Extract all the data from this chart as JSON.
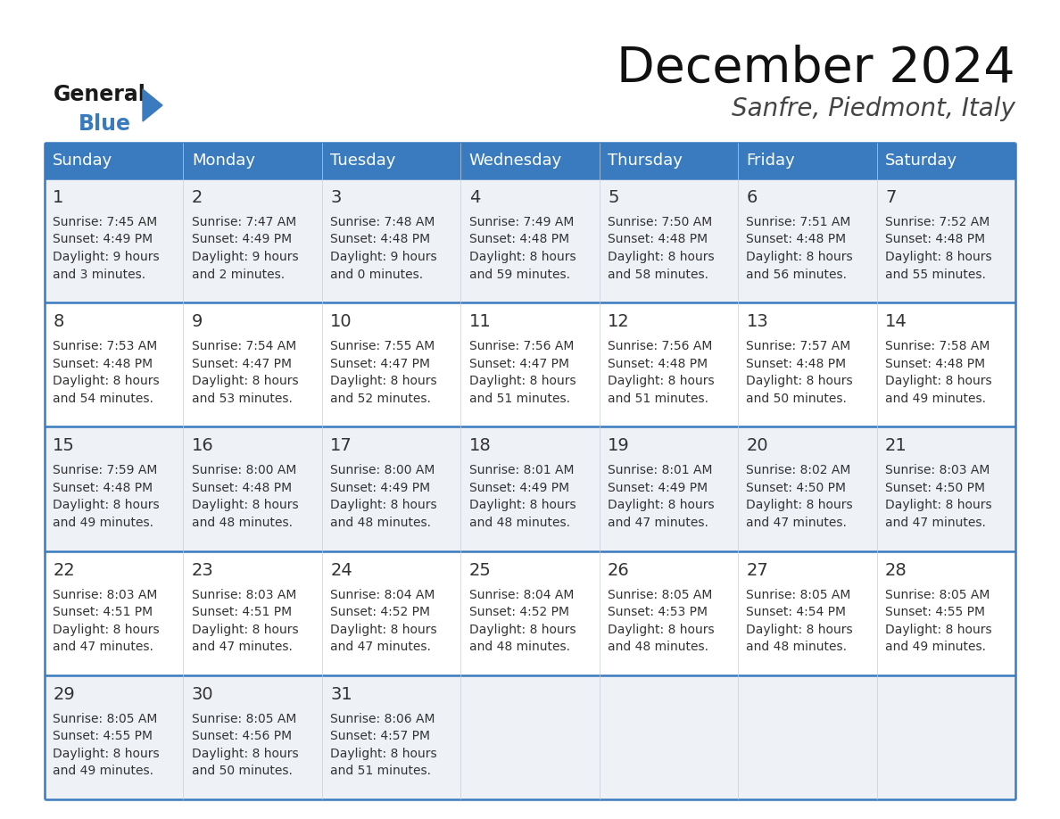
{
  "title": "December 2024",
  "subtitle": "Sanfre, Piedmont, Italy",
  "header_bg": "#3a7bbf",
  "header_text": "#ffffff",
  "day_names": [
    "Sunday",
    "Monday",
    "Tuesday",
    "Wednesday",
    "Thursday",
    "Friday",
    "Saturday"
  ],
  "row_bg_odd": "#eef2f7",
  "row_bg_even": "#ffffff",
  "cell_text_color": "#333333",
  "date_num_color": "#333333",
  "border_color": "#3a7bbf",
  "days": [
    {
      "day": 1,
      "col": 0,
      "row": 0,
      "sunrise": "7:45 AM",
      "sunset": "4:49 PM",
      "daylight": "9 hours",
      "daylight2": "and 3 minutes."
    },
    {
      "day": 2,
      "col": 1,
      "row": 0,
      "sunrise": "7:47 AM",
      "sunset": "4:49 PM",
      "daylight": "9 hours",
      "daylight2": "and 2 minutes."
    },
    {
      "day": 3,
      "col": 2,
      "row": 0,
      "sunrise": "7:48 AM",
      "sunset": "4:48 PM",
      "daylight": "9 hours",
      "daylight2": "and 0 minutes."
    },
    {
      "day": 4,
      "col": 3,
      "row": 0,
      "sunrise": "7:49 AM",
      "sunset": "4:48 PM",
      "daylight": "8 hours",
      "daylight2": "and 59 minutes."
    },
    {
      "day": 5,
      "col": 4,
      "row": 0,
      "sunrise": "7:50 AM",
      "sunset": "4:48 PM",
      "daylight": "8 hours",
      "daylight2": "and 58 minutes."
    },
    {
      "day": 6,
      "col": 5,
      "row": 0,
      "sunrise": "7:51 AM",
      "sunset": "4:48 PM",
      "daylight": "8 hours",
      "daylight2": "and 56 minutes."
    },
    {
      "day": 7,
      "col": 6,
      "row": 0,
      "sunrise": "7:52 AM",
      "sunset": "4:48 PM",
      "daylight": "8 hours",
      "daylight2": "and 55 minutes."
    },
    {
      "day": 8,
      "col": 0,
      "row": 1,
      "sunrise": "7:53 AM",
      "sunset": "4:48 PM",
      "daylight": "8 hours",
      "daylight2": "and 54 minutes."
    },
    {
      "day": 9,
      "col": 1,
      "row": 1,
      "sunrise": "7:54 AM",
      "sunset": "4:47 PM",
      "daylight": "8 hours",
      "daylight2": "and 53 minutes."
    },
    {
      "day": 10,
      "col": 2,
      "row": 1,
      "sunrise": "7:55 AM",
      "sunset": "4:47 PM",
      "daylight": "8 hours",
      "daylight2": "and 52 minutes."
    },
    {
      "day": 11,
      "col": 3,
      "row": 1,
      "sunrise": "7:56 AM",
      "sunset": "4:47 PM",
      "daylight": "8 hours",
      "daylight2": "and 51 minutes."
    },
    {
      "day": 12,
      "col": 4,
      "row": 1,
      "sunrise": "7:56 AM",
      "sunset": "4:48 PM",
      "daylight": "8 hours",
      "daylight2": "and 51 minutes."
    },
    {
      "day": 13,
      "col": 5,
      "row": 1,
      "sunrise": "7:57 AM",
      "sunset": "4:48 PM",
      "daylight": "8 hours",
      "daylight2": "and 50 minutes."
    },
    {
      "day": 14,
      "col": 6,
      "row": 1,
      "sunrise": "7:58 AM",
      "sunset": "4:48 PM",
      "daylight": "8 hours",
      "daylight2": "and 49 minutes."
    },
    {
      "day": 15,
      "col": 0,
      "row": 2,
      "sunrise": "7:59 AM",
      "sunset": "4:48 PM",
      "daylight": "8 hours",
      "daylight2": "and 49 minutes."
    },
    {
      "day": 16,
      "col": 1,
      "row": 2,
      "sunrise": "8:00 AM",
      "sunset": "4:48 PM",
      "daylight": "8 hours",
      "daylight2": "and 48 minutes."
    },
    {
      "day": 17,
      "col": 2,
      "row": 2,
      "sunrise": "8:00 AM",
      "sunset": "4:49 PM",
      "daylight": "8 hours",
      "daylight2": "and 48 minutes."
    },
    {
      "day": 18,
      "col": 3,
      "row": 2,
      "sunrise": "8:01 AM",
      "sunset": "4:49 PM",
      "daylight": "8 hours",
      "daylight2": "and 48 minutes."
    },
    {
      "day": 19,
      "col": 4,
      "row": 2,
      "sunrise": "8:01 AM",
      "sunset": "4:49 PM",
      "daylight": "8 hours",
      "daylight2": "and 47 minutes."
    },
    {
      "day": 20,
      "col": 5,
      "row": 2,
      "sunrise": "8:02 AM",
      "sunset": "4:50 PM",
      "daylight": "8 hours",
      "daylight2": "and 47 minutes."
    },
    {
      "day": 21,
      "col": 6,
      "row": 2,
      "sunrise": "8:03 AM",
      "sunset": "4:50 PM",
      "daylight": "8 hours",
      "daylight2": "and 47 minutes."
    },
    {
      "day": 22,
      "col": 0,
      "row": 3,
      "sunrise": "8:03 AM",
      "sunset": "4:51 PM",
      "daylight": "8 hours",
      "daylight2": "and 47 minutes."
    },
    {
      "day": 23,
      "col": 1,
      "row": 3,
      "sunrise": "8:03 AM",
      "sunset": "4:51 PM",
      "daylight": "8 hours",
      "daylight2": "and 47 minutes."
    },
    {
      "day": 24,
      "col": 2,
      "row": 3,
      "sunrise": "8:04 AM",
      "sunset": "4:52 PM",
      "daylight": "8 hours",
      "daylight2": "and 47 minutes."
    },
    {
      "day": 25,
      "col": 3,
      "row": 3,
      "sunrise": "8:04 AM",
      "sunset": "4:52 PM",
      "daylight": "8 hours",
      "daylight2": "and 48 minutes."
    },
    {
      "day": 26,
      "col": 4,
      "row": 3,
      "sunrise": "8:05 AM",
      "sunset": "4:53 PM",
      "daylight": "8 hours",
      "daylight2": "and 48 minutes."
    },
    {
      "day": 27,
      "col": 5,
      "row": 3,
      "sunrise": "8:05 AM",
      "sunset": "4:54 PM",
      "daylight": "8 hours",
      "daylight2": "and 48 minutes."
    },
    {
      "day": 28,
      "col": 6,
      "row": 3,
      "sunrise": "8:05 AM",
      "sunset": "4:55 PM",
      "daylight": "8 hours",
      "daylight2": "and 49 minutes."
    },
    {
      "day": 29,
      "col": 0,
      "row": 4,
      "sunrise": "8:05 AM",
      "sunset": "4:55 PM",
      "daylight": "8 hours",
      "daylight2": "and 49 minutes."
    },
    {
      "day": 30,
      "col": 1,
      "row": 4,
      "sunrise": "8:05 AM",
      "sunset": "4:56 PM",
      "daylight": "8 hours",
      "daylight2": "and 50 minutes."
    },
    {
      "day": 31,
      "col": 2,
      "row": 4,
      "sunrise": "8:06 AM",
      "sunset": "4:57 PM",
      "daylight": "8 hours",
      "daylight2": "and 51 minutes."
    }
  ],
  "logo_text1": "General",
  "logo_text2": "Blue",
  "logo_color1": "#1a1a1a",
  "logo_color2": "#3a7bbf",
  "logo_triangle_color": "#3a7bbf",
  "title_fontsize": 40,
  "subtitle_fontsize": 20,
  "header_fontsize": 13,
  "daynum_fontsize": 14,
  "cell_fontsize": 10
}
